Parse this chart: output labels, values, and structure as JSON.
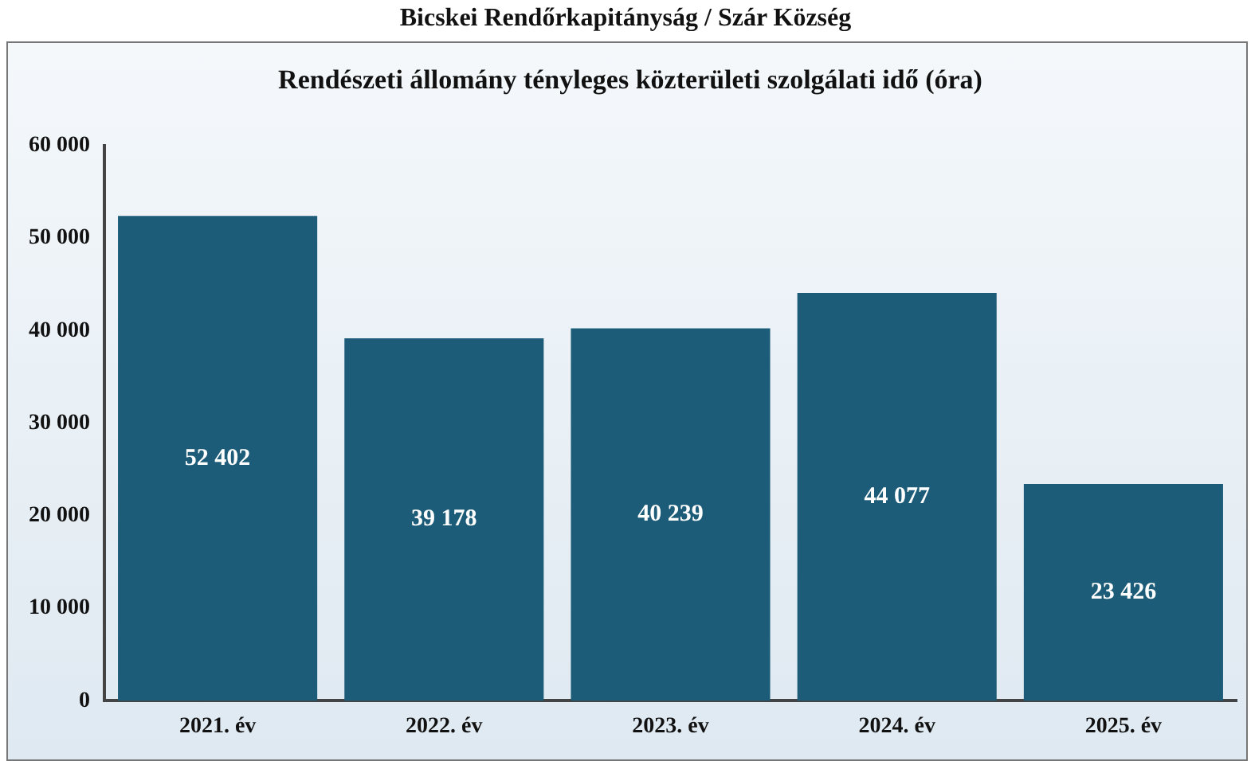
{
  "chart_data": {
    "type": "bar",
    "title": "Bicskei Rendőrkapitányság / Szár Község",
    "subtitle": "Rendészeti állomány tényleges közterületi szolgálati idő (óra)",
    "categories": [
      "2021. év",
      "2022. év",
      "2023. év",
      "2024. év",
      "2025. év"
    ],
    "values": [
      52402,
      39178,
      40239,
      44077,
      23426
    ],
    "color": "#1d5c78",
    "ylim": [
      0,
      60000
    ],
    "yticks": [
      {
        "value": 0,
        "label": "0"
      },
      {
        "value": 10000,
        "label": "10 000"
      },
      {
        "value": 20000,
        "label": "20 000"
      },
      {
        "value": 30000,
        "label": "30 000"
      },
      {
        "value": 40000,
        "label": "40 000"
      },
      {
        "value": 50000,
        "label": "50 000"
      },
      {
        "value": 60000,
        "label": "60 000"
      }
    ],
    "grid": false,
    "legend": false,
    "data_labels": true
  }
}
